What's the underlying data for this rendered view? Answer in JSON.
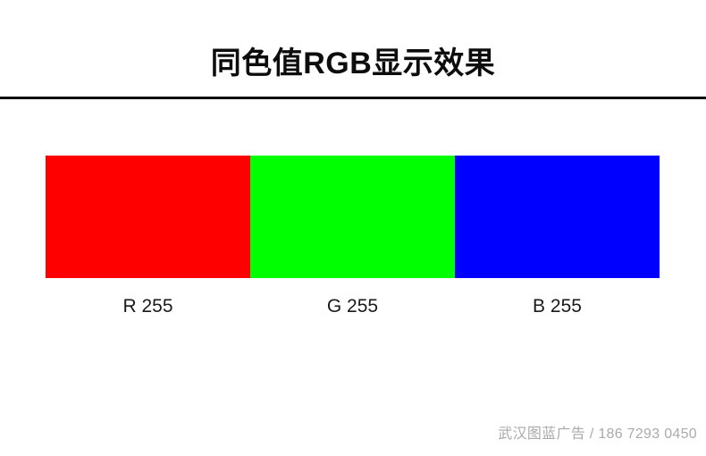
{
  "title": "同色值RGB显示效果",
  "swatches": [
    {
      "name": "red",
      "label": "R 255",
      "hex": "#ff0000"
    },
    {
      "name": "green",
      "label": "G 255",
      "hex": "#00ff00"
    },
    {
      "name": "blue",
      "label": "B 255",
      "hex": "#0000ff"
    }
  ],
  "colors": {
    "title_text": "#0d0d0d",
    "divider": "#0d0d0d",
    "label_text": "#1a1a1a",
    "footer_text": "#aaaaaa",
    "background": "#ffffff"
  },
  "footer": {
    "credit": "武汉图蓝广告 / 186 7293 0450"
  }
}
